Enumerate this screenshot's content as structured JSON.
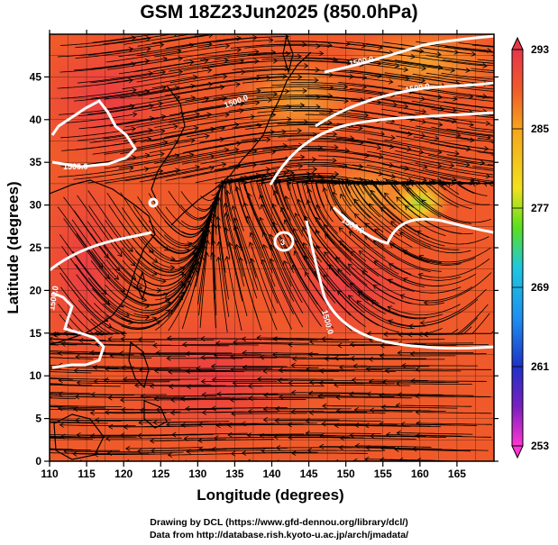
{
  "title": "GSM 18Z23Jun2025 (850.0hPa)",
  "credits": {
    "line1": "Drawing by DCL (https://www.gfd-dennou.org/library/dcl/)",
    "line2": "Data from http://database.rish.kyoto-u.ac.jp/arch/jmadata/"
  },
  "axes": {
    "xlabel": "Longitude (degrees)",
    "ylabel": "Latitude  (degrees)",
    "xticks": [
      "110",
      "115",
      "120",
      "125",
      "130",
      "135",
      "140",
      "145",
      "150",
      "155",
      "160",
      "165"
    ],
    "yticks": [
      "0",
      "5",
      "10",
      "15",
      "20",
      "25",
      "30",
      "35",
      "40",
      "45"
    ]
  },
  "colorbar": {
    "labels": [
      "293",
      "285",
      "277",
      "269",
      "261",
      "253"
    ],
    "colors": [
      "#e8364a",
      "#f06a28",
      "#f6a41c",
      "#f2e01e",
      "#58e01e",
      "#1ec8e0",
      "#1e8ef0",
      "#1e32c8",
      "#3a1eb4",
      "#c81ec8",
      "#ff36d2"
    ]
  },
  "contour_labels": [
    "1500.0",
    "1500.0",
    "1500.0",
    "1500.0",
    "1500.0",
    "1500.0",
    "1500.0"
  ],
  "low_marker": "3",
  "colors": {
    "field_base": "#f05a2a",
    "field_warm": "#f44d3d",
    "field_hot": "#ee4048",
    "field_cool": "#f4802a",
    "field_yellow": "#f2c82a",
    "field_green": "#a8d830",
    "contour": "#ffffff",
    "streamline": "#000000"
  },
  "chart_data": {
    "type": "heatmap",
    "variable": "temperature_850hPa_K",
    "xlim": [
      110,
      170
    ],
    "ylim": [
      0,
      50
    ],
    "colorbar_range": [
      253,
      293
    ],
    "contour_level": 1500.0,
    "grid": true,
    "overlays": [
      "geopotential_height_contour",
      "wind_streamlines",
      "coastlines"
    ]
  }
}
